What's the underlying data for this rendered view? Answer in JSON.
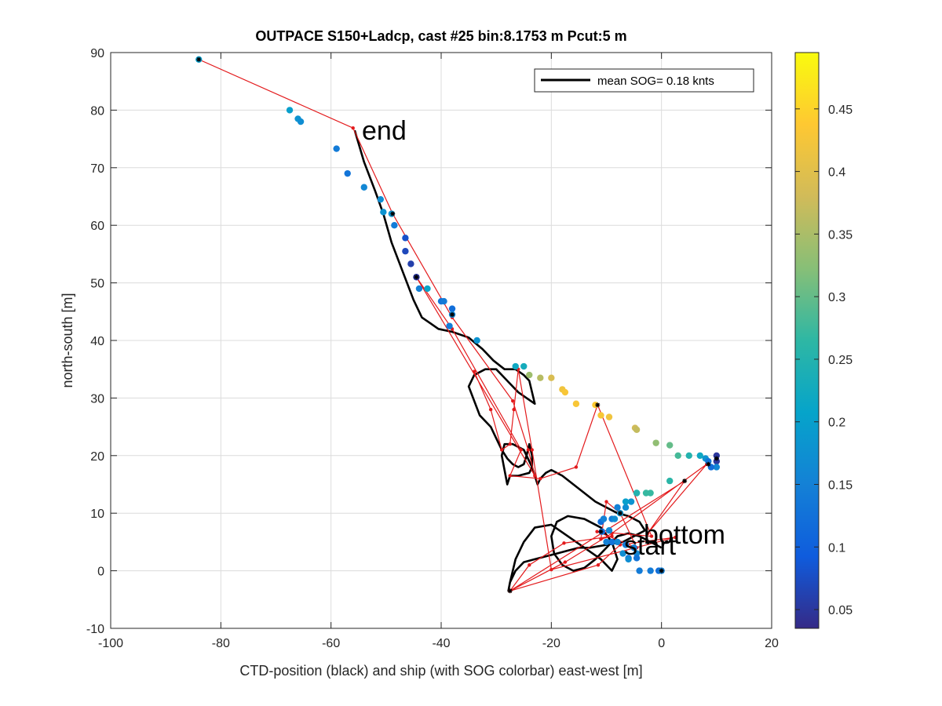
{
  "chart_data": {
    "type": "scatter",
    "title": "OUTPACE S150+Ladcp, cast #25 bin:8.1753 m  Pcut:5 m",
    "xlabel": "CTD-position (black) and ship (with SOG colorbar) east-west [m]",
    "ylabel": "north-south [m]",
    "xlim": [
      -100,
      20
    ],
    "ylim": [
      -10,
      90
    ],
    "xticks": [
      "-100",
      "-80",
      "-60",
      "-40",
      "-20",
      "0",
      "20"
    ],
    "yticks": [
      "-10",
      "0",
      "10",
      "20",
      "30",
      "40",
      "50",
      "60",
      "70",
      "80",
      "90"
    ],
    "grid": true,
    "legend": {
      "placement": "top-right",
      "entries": [
        "mean SOG=  0.18 knts"
      ]
    },
    "colorbar": {
      "range": [
        0.035,
        0.495
      ],
      "ticks": [
        "0.05",
        "0.1",
        "0.15",
        "0.2",
        "0.25",
        "0.3",
        "0.35",
        "0.4",
        "0.45"
      ],
      "tick_values": [
        0.05,
        0.1,
        0.15,
        0.2,
        0.25,
        0.3,
        0.35,
        0.4,
        0.45
      ]
    },
    "annotations": [
      {
        "text": "end",
        "x": -52.5,
        "y": 75
      },
      {
        "text": "bottom",
        "x": -1,
        "y": 5
      },
      {
        "text": "start",
        "x": -6.5,
        "y": 3.5
      }
    ],
    "series": [
      {
        "style": "black-line",
        "x": [
          -55.7,
          -54,
          -52,
          -50.5,
          -49,
          -47,
          -45,
          -43.5,
          -42,
          -40.5,
          -38,
          -35,
          -32.5,
          -30.5,
          -28.5,
          -26.5,
          -25,
          -24,
          -23,
          -26,
          -28,
          -30,
          -32,
          -34,
          -35,
          -34,
          -33,
          -31,
          -30,
          -29,
          -28,
          -27,
          -26,
          -25,
          -24.5,
          -24,
          -23.5,
          -23.5,
          -24,
          -26,
          -27.5,
          -28,
          -29,
          -28.5,
          -27,
          -25,
          -23.5,
          -22.5,
          -22,
          -21,
          -20,
          -18,
          -16,
          -14,
          -12,
          -10,
          -8,
          -6,
          -4,
          -3,
          -5,
          -7,
          -10,
          -13,
          -15,
          -17,
          -19,
          -21,
          -23,
          -25,
          -26.5,
          -27.5,
          -27.8,
          -27.5,
          -26.5,
          -25,
          -23,
          -20,
          -17,
          -14,
          -11,
          -9,
          -8,
          -9,
          -11,
          -14,
          -17,
          -19,
          -20,
          -19.5,
          -18,
          -16,
          -14,
          -12,
          -11,
          -10,
          -9,
          -8,
          -6,
          -4,
          -2,
          0
        ],
        "y": [
          76.5,
          71,
          66,
          62,
          57,
          52,
          47,
          44,
          43,
          42,
          41.5,
          40.5,
          38.5,
          36.5,
          35,
          35,
          34,
          33,
          29,
          31,
          33,
          35,
          35,
          34,
          32,
          29.5,
          27,
          25,
          23,
          21,
          19.5,
          18.5,
          18,
          18.5,
          20,
          22,
          20,
          18,
          17,
          16.5,
          16.5,
          15,
          20,
          22,
          22,
          21,
          18,
          15,
          16,
          17,
          17.5,
          16.5,
          15,
          13.5,
          12,
          11,
          10,
          9.5,
          8.5,
          7,
          6,
          5,
          4.5,
          4,
          4,
          3.5,
          3,
          2.5,
          2,
          1.5,
          0,
          -2,
          -3.5,
          -2,
          2,
          5,
          7.5,
          8,
          6,
          4,
          2,
          0,
          2,
          5,
          7.5,
          9,
          9.5,
          8.5,
          6,
          3,
          1,
          0,
          0.5,
          2,
          3,
          4,
          5,
          6,
          6.5,
          6,
          5,
          4
        ]
      },
      {
        "style": "red-line",
        "x": [
          -84,
          -56,
          -48.8,
          -38,
          -27,
          -24.2,
          -23,
          -44.5,
          -38,
          -25.5,
          -27.5,
          -22,
          -15.5,
          -11.6,
          -1.8,
          -11.7,
          -4.5,
          -7.5,
          -10,
          -11,
          -9,
          -17.7,
          -24,
          -27.5,
          -17.5,
          -9,
          8.2,
          -2.5,
          4.2,
          -27.5,
          -11.5,
          -7.5,
          2.5,
          -20,
          -23.5,
          -26,
          -26.8,
          -27.5,
          -29,
          -31,
          -34
        ],
        "y": [
          88.8,
          76.9,
          62,
          44,
          29.5,
          21,
          16.5,
          51,
          42,
          21,
          16.5,
          16,
          18,
          28.8,
          6,
          6.8,
          4,
          10,
          12,
          5.5,
          6,
          4.8,
          1,
          -3.5,
          1.5,
          6.5,
          18.5,
          6.5,
          15.6,
          -3.5,
          1,
          4.5,
          5.8,
          0.2,
          21,
          35,
          28,
          22,
          21,
          28,
          34.6
        ]
      },
      {
        "style": "sog-points",
        "x": [
          -84,
          -67.5,
          -66,
          -65.5,
          -59,
          -57,
          -54,
          -51,
          -50.5,
          -49,
          -48.5,
          -46.5,
          -46.5,
          -45.5,
          -44.5,
          -44,
          -42.5,
          -40,
          -39.5,
          -38,
          -38,
          -38.5,
          -33.5,
          -26.5,
          -25,
          -24,
          -22,
          -20,
          -18,
          -17.5,
          -15.5,
          -12,
          -11,
          -9.5,
          -4.8,
          -4.5,
          -1,
          1.5,
          3,
          5,
          7,
          8,
          8.5,
          10,
          10,
          10,
          9,
          1.5,
          -2,
          -4.5,
          -5.5,
          -6.5,
          -8,
          -9,
          -10.5,
          -11,
          -10.8,
          -10,
          -9,
          -6.5,
          -5,
          -4.5,
          -4.5,
          -6,
          -4,
          -2,
          -0.5,
          0,
          -2.8,
          -4.5,
          -6.5,
          -7.5,
          -8.5,
          -10.5,
          -9.5,
          -8,
          -7,
          -6
        ],
        "y": [
          88.8,
          80,
          78.5,
          78,
          73.3,
          69,
          66.6,
          64.5,
          62.3,
          62,
          60,
          57.8,
          55.5,
          53.3,
          51,
          49,
          49,
          46.8,
          46.8,
          45.5,
          44.5,
          42.5,
          40,
          35.5,
          35.5,
          34,
          33.5,
          33.5,
          31.5,
          31,
          29,
          28.8,
          27,
          26.7,
          24.8,
          24.5,
          22.2,
          21.8,
          20,
          20,
          20,
          19.5,
          19,
          20,
          19,
          18,
          18,
          15.6,
          13.5,
          13.5,
          12,
          11,
          11,
          9,
          9,
          8.5,
          6.8,
          5,
          5,
          4.5,
          4,
          3,
          2.2,
          2.2,
          0,
          0,
          0,
          0,
          13.5,
          13.5,
          12,
          10,
          9,
          9,
          7,
          5,
          3,
          2
        ],
        "sog": [
          0.2,
          0.2,
          0.18,
          0.17,
          0.14,
          0.13,
          0.16,
          0.17,
          0.18,
          0.18,
          0.14,
          0.08,
          0.07,
          0.06,
          0.05,
          0.15,
          0.21,
          0.13,
          0.14,
          0.12,
          0.16,
          0.14,
          0.18,
          0.22,
          0.23,
          0.34,
          0.36,
          0.39,
          0.42,
          0.43,
          0.43,
          0.44,
          0.43,
          0.42,
          0.38,
          0.37,
          0.33,
          0.3,
          0.28,
          0.25,
          0.22,
          0.18,
          0.13,
          0.05,
          0.05,
          0.16,
          0.12,
          0.26,
          0.27,
          0.2,
          0.18,
          0.17,
          0.15,
          0.14,
          0.13,
          0.12,
          0.12,
          0.15,
          0.13,
          0.14,
          0.15,
          0.16,
          0.13,
          0.13,
          0.14,
          0.14,
          0.12,
          0.15,
          0.27,
          0.25,
          0.2,
          0.18,
          0.17,
          0.15,
          0.16,
          0.16,
          0.17,
          0.17
        ]
      },
      {
        "style": "black-markers",
        "x": [
          -84,
          -48.8,
          -44.5,
          -38,
          -11.6,
          -11,
          -7.5,
          0,
          10,
          8.5,
          4.2,
          -27.5
        ],
        "y": [
          88.8,
          62,
          51,
          44.5,
          28.8,
          6.8,
          10,
          0,
          19.5,
          18.5,
          15.6,
          -3.5
        ]
      }
    ]
  }
}
